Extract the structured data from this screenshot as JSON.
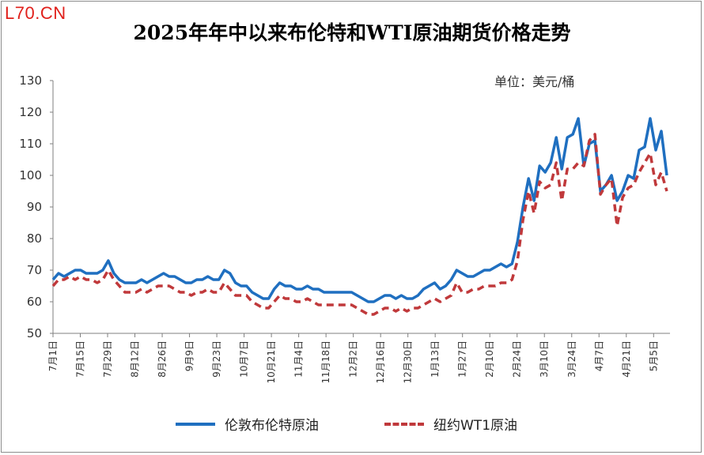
{
  "watermark": "L70.CN",
  "chart_data": {
    "type": "line",
    "title": "2025年年中以来布伦特和WTI原油期货价格走势",
    "unit_label": "单位：美元/桶",
    "ylim": [
      50,
      130
    ],
    "yticks": [
      50,
      60,
      70,
      80,
      90,
      100,
      110,
      120,
      130
    ],
    "grid": false,
    "legend_position": "bottom",
    "x_tick_labels": [
      "7月1日",
      "7月15日",
      "7月29日",
      "8月12日",
      "8月26日",
      "9月9日",
      "9月23日",
      "10月7日",
      "10月21日",
      "11月4日",
      "11月18日",
      "12月2日",
      "12月16日",
      "12月30日",
      "1月13日",
      "1月27日",
      "2月10日",
      "2月24日",
      "3月10日",
      "3月24日",
      "4月7日",
      "4月21日",
      "5月5日"
    ],
    "series": [
      {
        "name": "伦敦布伦特原油",
        "color": "#1f6fc0",
        "style": "solid",
        "values": [
          67,
          69,
          68,
          69,
          70,
          70,
          69,
          69,
          69,
          70,
          73,
          69,
          67,
          66,
          66,
          66,
          67,
          66,
          67,
          68,
          69,
          68,
          68,
          67,
          66,
          66,
          67,
          67,
          68,
          67,
          67,
          70,
          69,
          66,
          65,
          65,
          63,
          62,
          61,
          61,
          64,
          66,
          65,
          65,
          64,
          64,
          65,
          64,
          64,
          63,
          63,
          63,
          63,
          63,
          63,
          62,
          61,
          60,
          60,
          61,
          62,
          62,
          61,
          62,
          61,
          61,
          62,
          64,
          65,
          66,
          64,
          65,
          67,
          70,
          69,
          68,
          68,
          69,
          70,
          70,
          71,
          72,
          71,
          72,
          79,
          90,
          99,
          92,
          103,
          101,
          104,
          112,
          102,
          112,
          113,
          118,
          103,
          110,
          111,
          95,
          97,
          100,
          92,
          95,
          100,
          99,
          108,
          109,
          118,
          108,
          114,
          100
        ]
      },
      {
        "name": "纽约WT1原油",
        "color": "#c0393b",
        "style": "dashed",
        "values": [
          65,
          67,
          67,
          68,
          67,
          68,
          67,
          67,
          66,
          67,
          70,
          67,
          65,
          63,
          63,
          63,
          64,
          63,
          64,
          65,
          65,
          65,
          64,
          63,
          63,
          62,
          63,
          63,
          64,
          63,
          63,
          66,
          64,
          62,
          62,
          62,
          60,
          59,
          58,
          58,
          60,
          62,
          61,
          61,
          60,
          60,
          61,
          60,
          59,
          59,
          59,
          59,
          59,
          59,
          59,
          58,
          57,
          56,
          56,
          57,
          58,
          58,
          57,
          58,
          57,
          58,
          58,
          59,
          60,
          61,
          60,
          61,
          62,
          66,
          63,
          63,
          64,
          64,
          65,
          65,
          65,
          66,
          66,
          67,
          73,
          86,
          95,
          88,
          98,
          96,
          97,
          104,
          92,
          102,
          102,
          104,
          103,
          111,
          113,
          94,
          97,
          99,
          84,
          93,
          96,
          97,
          101,
          104,
          107,
          97,
          101,
          95
        ]
      }
    ]
  }
}
